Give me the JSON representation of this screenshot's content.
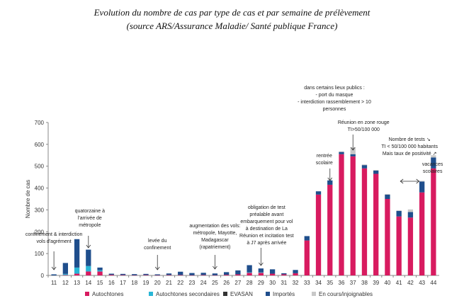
{
  "title": {
    "line1": "Evolution du nombre de cas par type de cas et par semaine de prélèvement",
    "line2": "(source ARS/Assurance Maladie/ Santé publique France)"
  },
  "chart_data": {
    "type": "bar",
    "stacked": true,
    "ylabel": "Nombre de cas",
    "xlabel": "",
    "ylim": [
      0,
      700
    ],
    "yticks": [
      0,
      100,
      200,
      300,
      400,
      500,
      600,
      700
    ],
    "grid": false,
    "legend_position": "bottom",
    "categories": [
      "11",
      "12",
      "13",
      "14",
      "15",
      "16",
      "17",
      "18",
      "19",
      "20",
      "21",
      "22",
      "23",
      "24",
      "25",
      "26",
      "27",
      "28",
      "29",
      "30",
      "31",
      "32",
      "33",
      "34",
      "35",
      "36",
      "37",
      "38",
      "39",
      "40",
      "41",
      "42",
      "43",
      "44"
    ],
    "series": [
      {
        "name": "Autochtones",
        "color": "#d81b60",
        "values": [
          0,
          2,
          8,
          18,
          18,
          3,
          2,
          1,
          2,
          1,
          2,
          2,
          1,
          2,
          1,
          3,
          5,
          12,
          12,
          8,
          5,
          10,
          160,
          370,
          415,
          555,
          545,
          490,
          465,
          350,
          270,
          265,
          380,
          490
        ]
      },
      {
        "name": "Autochtones secondaires",
        "color": "#29b6d6",
        "values": [
          0,
          5,
          28,
          25,
          6,
          0,
          0,
          0,
          0,
          0,
          0,
          0,
          0,
          0,
          0,
          0,
          0,
          2,
          2,
          0,
          0,
          0,
          0,
          0,
          0,
          0,
          0,
          0,
          0,
          0,
          0,
          0,
          0,
          0
        ]
      },
      {
        "name": "EVASAN",
        "color": "#333333",
        "values": [
          0,
          0,
          0,
          0,
          0,
          0,
          0,
          0,
          0,
          0,
          0,
          0,
          0,
          0,
          0,
          0,
          0,
          0,
          0,
          0,
          0,
          0,
          0,
          0,
          0,
          0,
          0,
          0,
          0,
          0,
          0,
          0,
          0,
          0
        ]
      },
      {
        "name": "Importés",
        "color": "#1f4e8c",
        "values": [
          5,
          50,
          130,
          75,
          12,
          5,
          5,
          5,
          5,
          4,
          7,
          15,
          10,
          10,
          8,
          12,
          18,
          33,
          18,
          20,
          5,
          15,
          20,
          15,
          20,
          10,
          10,
          15,
          15,
          20,
          25,
          25,
          50,
          50
        ]
      },
      {
        "name": "En cours/injoignables",
        "color": "#c8c8c8",
        "values": [
          0,
          0,
          0,
          0,
          0,
          0,
          0,
          0,
          0,
          0,
          0,
          0,
          0,
          0,
          0,
          0,
          0,
          0,
          0,
          0,
          0,
          0,
          0,
          0,
          0,
          3,
          30,
          3,
          3,
          3,
          3,
          12,
          3,
          10
        ]
      }
    ],
    "annotations": [
      {
        "week": "11",
        "lines": [
          "confinement & interdiction",
          "vols d'agrément"
        ]
      },
      {
        "week": "14",
        "lines": [
          "quatorzaine à",
          "l'arrivée de",
          "métropole"
        ]
      },
      {
        "week": "20",
        "lines": [
          "levée du",
          "confinement"
        ]
      },
      {
        "week": "25",
        "lines": [
          "augmentation des vols:",
          "métropole, Mayotte,",
          "Madagascar",
          "(rapatriement)"
        ]
      },
      {
        "week": "29",
        "lines": [
          "obligation de test",
          "préalable avant",
          "embarquement pour vol",
          "à destination de La",
          "Réunion et incitation test",
          "à J7 après arrivée"
        ]
      },
      {
        "week": "35",
        "lines": [
          "rentrée",
          "scolaire"
        ]
      },
      {
        "week": "36",
        "lines": [
          "dans certains lieux publics :",
          "- port du masque",
          "- interdiction rassemblement > 10",
          "personnes"
        ]
      },
      {
        "week": "37",
        "lines": [
          "Réunion en zone rouge",
          "TI>50/100 000"
        ]
      },
      {
        "week": "41",
        "lines": [
          "Nombre de tests ↘",
          "TI < 50/100 000 habitants",
          "Mais taux de positivité ↗"
        ]
      },
      {
        "week": "43",
        "lines": [
          "vacances",
          "scolaires"
        ]
      }
    ]
  }
}
